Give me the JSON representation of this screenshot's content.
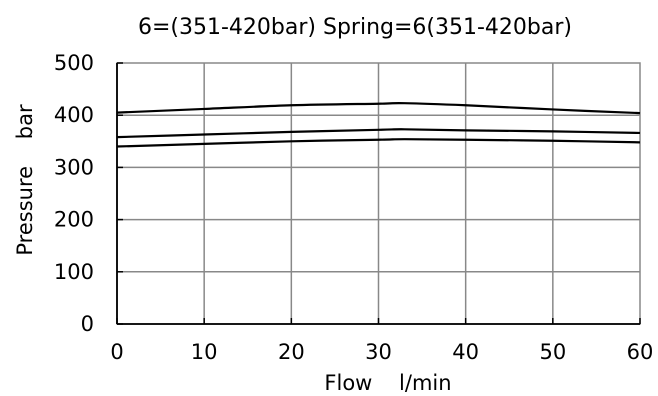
{
  "chart_data": {
    "type": "line",
    "title": "6=(351-420bar)  Spring=6(351-420bar)",
    "xlabel": "Flow    l/min",
    "ylabel": "Pressure    bar",
    "xlim": [
      0,
      60
    ],
    "ylim": [
      0,
      500
    ],
    "xticks": [
      "0",
      "10",
      "20",
      "30",
      "40",
      "50",
      "60"
    ],
    "yticks": [
      "0",
      "100",
      "200",
      "300",
      "400",
      "500"
    ],
    "grid": true,
    "legend": "none",
    "colors": {
      "grid": "#888888",
      "axis": "#000000",
      "series": "#000000",
      "text": "#000000"
    },
    "series": [
      {
        "x": [
          0,
          10,
          20,
          30,
          33,
          40,
          50,
          60
        ],
        "values": [
          405,
          412,
          419,
          422,
          423,
          419,
          411,
          404
        ]
      },
      {
        "x": [
          0,
          10,
          20,
          30,
          33,
          40,
          50,
          60
        ],
        "values": [
          358,
          363,
          368,
          372,
          373,
          371,
          369,
          366
        ]
      },
      {
        "x": [
          0,
          10,
          20,
          30,
          33,
          40,
          50,
          60
        ],
        "values": [
          340,
          345,
          350,
          353,
          354,
          353,
          351,
          348
        ]
      }
    ]
  }
}
